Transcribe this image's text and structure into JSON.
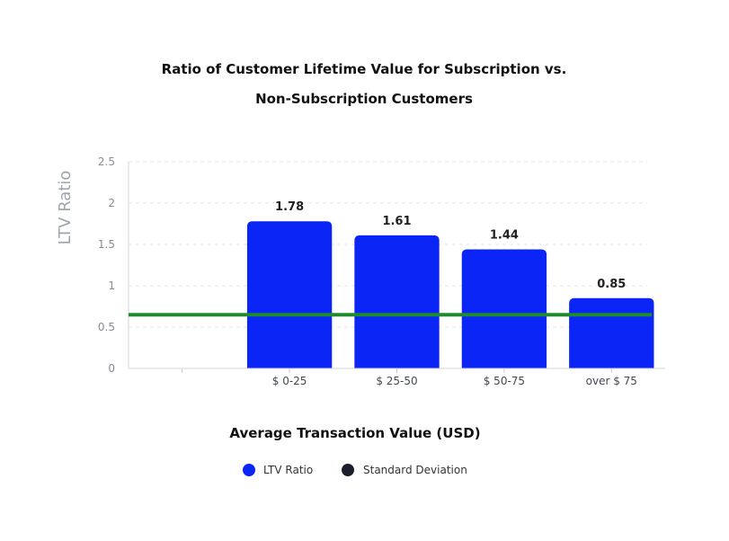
{
  "chart_data": {
    "type": "bar",
    "title_lines": [
      "Ratio of Customer Lifetime Value for Subscription vs.",
      "Non-Subscription Customers"
    ],
    "xlabel": "Average Transaction Value (USD)",
    "ylabel": "LTV Ratio",
    "categories": [
      "",
      "$ 0-25",
      "$ 25-50",
      "$ 50-75",
      "over $ 75"
    ],
    "series": [
      {
        "name": "LTV Ratio",
        "values": [
          null,
          1.78,
          1.61,
          1.44,
          0.85
        ],
        "color": "#0a25f5"
      }
    ],
    "data_labels": [
      "",
      "1.78",
      "1.61",
      "1.44",
      "0.85"
    ],
    "reference_line": {
      "name": "Standard Deviation",
      "value": 0.65,
      "color": "#1e8c2a",
      "legend_color": "#1a1f2b"
    },
    "ylim": [
      0,
      2.5
    ],
    "yticks": [
      0,
      0.5,
      1,
      1.5,
      2,
      2.5
    ],
    "ytick_labels": [
      "0",
      "0.5",
      "1",
      "1.5",
      "2",
      "2.5"
    ],
    "grid": true,
    "legend_position": "bottom-center"
  }
}
